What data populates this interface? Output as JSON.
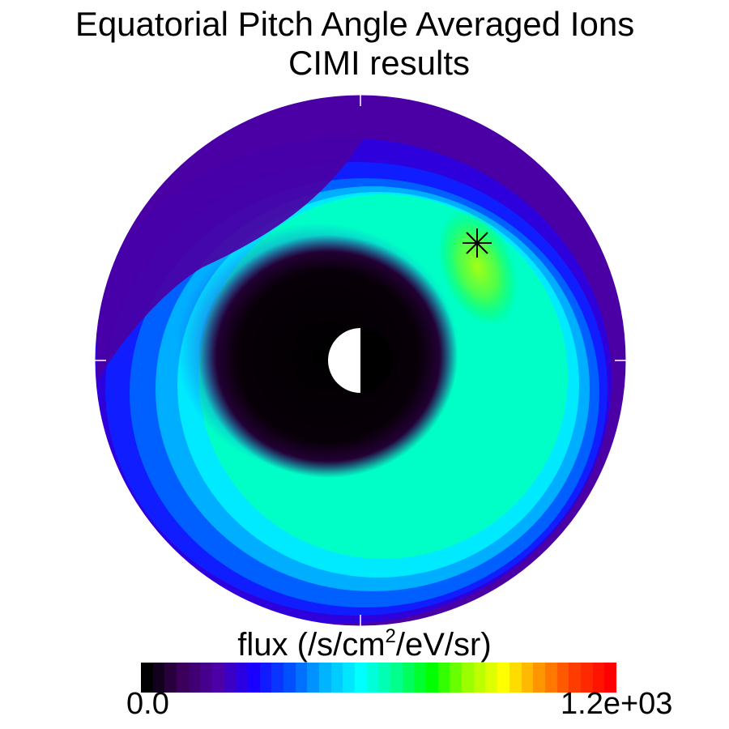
{
  "chart_data": {
    "type": "heatmap",
    "title": "Equatorial Pitch Angle Averaged Ions",
    "subtitle": "CIMI results",
    "projection": "polar",
    "colorbar": {
      "label_prefix": "flux (/s/cm",
      "label_sup": "2",
      "label_suffix": "/eV/sr)",
      "min_label": "0.0",
      "max_label": "1.2e+03",
      "min": 0,
      "max": 1200,
      "colors": [
        "#000000",
        "#3a005a",
        "#4b00a8",
        "#1a00ff",
        "#0050ff",
        "#00b4ff",
        "#00ffff",
        "#00ff8c",
        "#00ff00",
        "#9cff00",
        "#ffff00",
        "#ff9600",
        "#ff3c00",
        "#ff0000"
      ]
    },
    "field": {
      "background_level": 0.15,
      "inner_core_level": 0.0,
      "ring_peak_level": 0.55,
      "ring_peak_location": "upper-right",
      "marker": "asterisk"
    },
    "earth": {
      "dayside_color": "#ffffff",
      "nightside_color": "#000000"
    }
  }
}
